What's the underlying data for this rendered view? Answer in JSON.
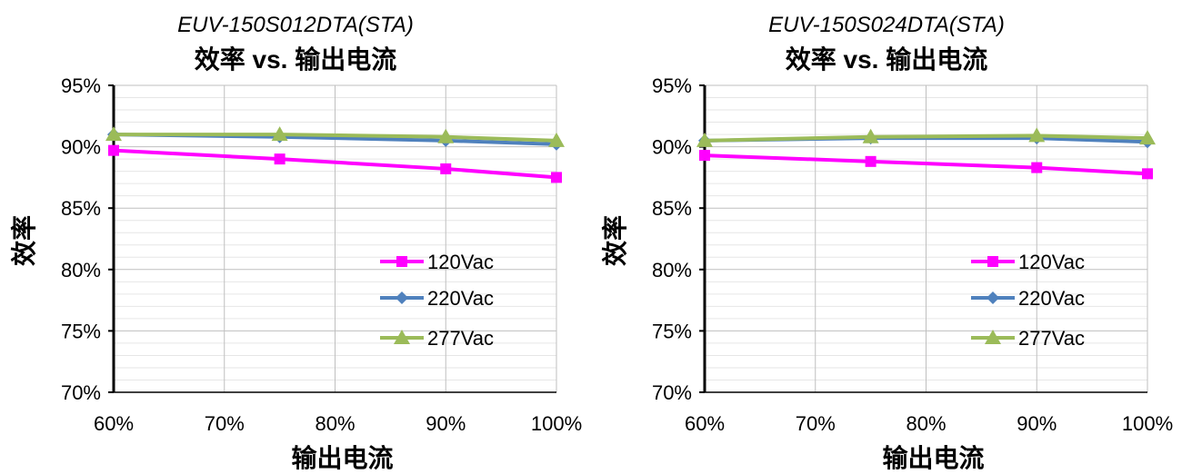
{
  "colors": {
    "120Vac": "#ff00ff",
    "220Vac": "#4f81bd",
    "277Vac": "#9bbb59",
    "grid": "#bfbfbf",
    "minor_grid": "#e6e6e6"
  },
  "chart_data": [
    {
      "type": "line",
      "subtitle": "EUV-150S012DTA(STA)",
      "title": "效率 vs. 输出电流",
      "xlabel": "输出电流",
      "ylabel": "效率",
      "x": [
        60,
        75,
        90,
        100
      ],
      "xlim": [
        60,
        100
      ],
      "ylim": [
        70,
        95
      ],
      "x_ticks": [
        "60%",
        "70%",
        "80%",
        "90%",
        "100%"
      ],
      "y_ticks": [
        "95%",
        "90%",
        "85%",
        "80%",
        "75%",
        "70%"
      ],
      "legend_position": "center-right",
      "series": [
        {
          "name": "120Vac",
          "marker": "square",
          "values": [
            89.7,
            89.0,
            88.2,
            87.5
          ]
        },
        {
          "name": "220Vac",
          "marker": "diamond",
          "values": [
            91.0,
            90.8,
            90.5,
            90.2
          ]
        },
        {
          "name": "277Vac",
          "marker": "triangle",
          "values": [
            91.0,
            91.0,
            90.8,
            90.5
          ]
        }
      ]
    },
    {
      "type": "line",
      "subtitle": "EUV-150S024DTA(STA)",
      "title": "效率 vs. 输出电流",
      "xlabel": "输出电流",
      "ylabel": "效率",
      "x": [
        60,
        75,
        90,
        100
      ],
      "xlim": [
        60,
        100
      ],
      "ylim": [
        70,
        95
      ],
      "x_ticks": [
        "60%",
        "70%",
        "80%",
        "90%",
        "100%"
      ],
      "y_ticks": [
        "95%",
        "90%",
        "85%",
        "80%",
        "75%",
        "70%"
      ],
      "legend_position": "center-right",
      "series": [
        {
          "name": "120Vac",
          "marker": "square",
          "values": [
            89.3,
            88.8,
            88.3,
            87.8
          ]
        },
        {
          "name": "220Vac",
          "marker": "diamond",
          "values": [
            90.5,
            90.7,
            90.7,
            90.4
          ]
        },
        {
          "name": "277Vac",
          "marker": "triangle",
          "values": [
            90.5,
            90.8,
            90.9,
            90.7
          ]
        }
      ]
    }
  ]
}
